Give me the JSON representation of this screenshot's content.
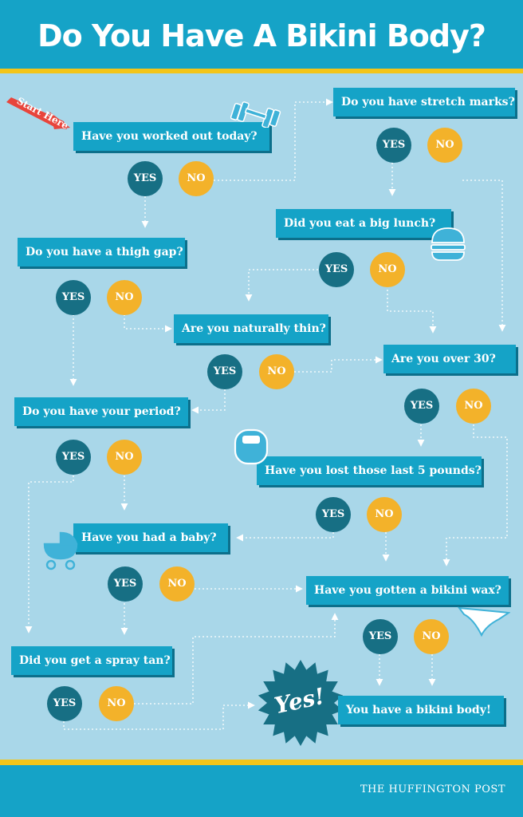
{
  "header": {
    "title": "Do You Have A Bikini Body?"
  },
  "start_label": "Start Here",
  "questions": {
    "q_workout": "Have you worked out today?",
    "q_stretch": "Do you have stretch marks?",
    "q_lunch": "Did you eat a big lunch?",
    "q_thigh": "Do you have a thigh gap?",
    "q_thin": "Are you naturally thin?",
    "q_over30": "Are you over 30?",
    "q_period": "Do you have your period?",
    "q_pounds": "Have you lost those last 5 pounds?",
    "q_baby": "Have you had a baby?",
    "q_wax": "Have you gotten a bikini wax?",
    "q_tan": "Did you get a spray tan?"
  },
  "answers": {
    "yes": "YES",
    "no": "NO"
  },
  "result": {
    "badge": "Yes!",
    "text": "You have a bikini body!"
  },
  "footer": {
    "credit": "THE HUFFINGTON POST"
  },
  "colors": {
    "background": "#a9d7e9",
    "header": "#15a3c7",
    "accent_stripe": "#f3c519",
    "question_box": "#15a3c7",
    "yes_circle": "#176f84",
    "no_circle": "#f3b22a",
    "start_arrow": "#e8453c",
    "badge": "#176f84"
  },
  "icons": [
    "dumbbell-icon",
    "burger-icon",
    "scale-icon",
    "stroller-icon",
    "bikini-bottom-icon",
    "starburst-badge"
  ]
}
